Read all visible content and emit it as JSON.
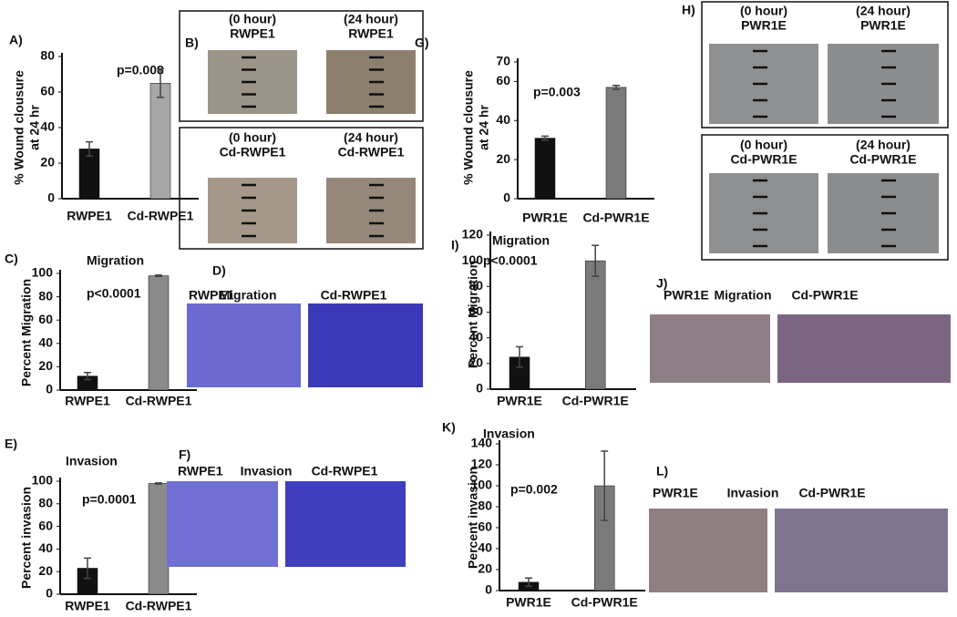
{
  "chart_data": [
    {
      "type": "bar",
      "panel": "A)",
      "ylabel": [
        "% Wound  clousure",
        "at 24 hr"
      ],
      "annotation": "p=0.008",
      "categories": [
        "RWPE1",
        "Cd-RWPE1"
      ],
      "values": [
        28,
        65
      ],
      "errors": [
        4,
        8
      ],
      "colors": [
        "#111111",
        "#a6a6a6"
      ],
      "ylim": [
        0,
        80
      ],
      "yticks": [
        0,
        20,
        40,
        60,
        80
      ]
    },
    {
      "type": "bar",
      "panel": "C)",
      "title": "Migration",
      "ylabel": [
        "Percent Migration"
      ],
      "annotation": "p<0.0001",
      "categories": [
        "RWPE1",
        "Cd-RWPE1"
      ],
      "values": [
        12,
        98
      ],
      "errors": [
        3,
        0.5
      ],
      "colors": [
        "#111111",
        "#8a8a8a"
      ],
      "ylim": [
        0,
        100
      ],
      "yticks": [
        0,
        20,
        40,
        60,
        80,
        100
      ]
    },
    {
      "type": "bar",
      "panel": "E)",
      "title": "Invasion",
      "ylabel": [
        "Percent invasion"
      ],
      "annotation": "p=0.0001",
      "categories": [
        "RWPE1",
        "Cd-RWPE1"
      ],
      "values": [
        23,
        98
      ],
      "errors": [
        9,
        0.5
      ],
      "colors": [
        "#111111",
        "#8a8a8a"
      ],
      "ylim": [
        0,
        100
      ],
      "yticks": [
        0,
        20,
        40,
        60,
        80,
        100
      ]
    },
    {
      "type": "bar",
      "panel": "G)",
      "ylabel": [
        "% Wound  clousure",
        "at 24 hr"
      ],
      "annotation": "p=0.003",
      "categories": [
        "PWR1E",
        "Cd-PWR1E"
      ],
      "values": [
        31,
        57
      ],
      "errors": [
        1,
        1
      ],
      "colors": [
        "#111111",
        "#7a7a7a"
      ],
      "ylim": [
        0,
        70
      ],
      "yticks": [
        0,
        20,
        40,
        60,
        70
      ]
    },
    {
      "type": "bar",
      "panel": "I)",
      "title": "Migration",
      "ylabel": [
        "Percent Migration"
      ],
      "annotation": "p<0.0001",
      "categories": [
        "PWR1E",
        "Cd-PWR1E"
      ],
      "values": [
        25,
        100
      ],
      "errors": [
        8,
        12
      ],
      "colors": [
        "#111111",
        "#7a7a7a"
      ],
      "ylim": [
        0,
        120
      ],
      "yticks": [
        0,
        20,
        40,
        60,
        80,
        100,
        120
      ]
    },
    {
      "type": "bar",
      "panel": "K)",
      "title": "Invasion",
      "ylabel": [
        "Percent invasion"
      ],
      "annotation": "p=0.002",
      "categories": [
        "PWR1E",
        "Cd-PWR1E"
      ],
      "values": [
        8,
        100
      ],
      "errors": [
        4,
        33
      ],
      "colors": [
        "#111111",
        "#7a7a7a"
      ],
      "ylim": [
        0,
        140
      ],
      "yticks": [
        0,
        20,
        40,
        60,
        80,
        100,
        120,
        140
      ]
    }
  ],
  "image_panels": [
    {
      "label": "B)",
      "texts": [
        "(0 hour)",
        "RWPE1",
        "(24 hour)",
        "RWPE1",
        "(0 hour)",
        "Cd-RWPE1",
        "(24 hour)",
        "Cd-RWPE1"
      ]
    },
    {
      "label": "D)",
      "texts": [
        "RWPE1",
        "Migration",
        "Cd-RWPE1"
      ]
    },
    {
      "label": "F)",
      "texts": [
        "RWPE1",
        "Invasion",
        "Cd-RWPE1"
      ]
    },
    {
      "label": "H)",
      "texts": [
        "(0 hour)",
        "PWR1E",
        "(24 hour)",
        "PWR1E",
        "(0 hour)",
        "Cd-PWR1E",
        "(24 hour)",
        "Cd-PWR1E"
      ]
    },
    {
      "label": "J)",
      "texts": [
        "PWR1E",
        "Migration",
        "Cd-PWR1E"
      ]
    },
    {
      "label": "L)",
      "texts": [
        "PWR1E",
        "Invasion",
        "Cd-PWR1E"
      ]
    }
  ]
}
